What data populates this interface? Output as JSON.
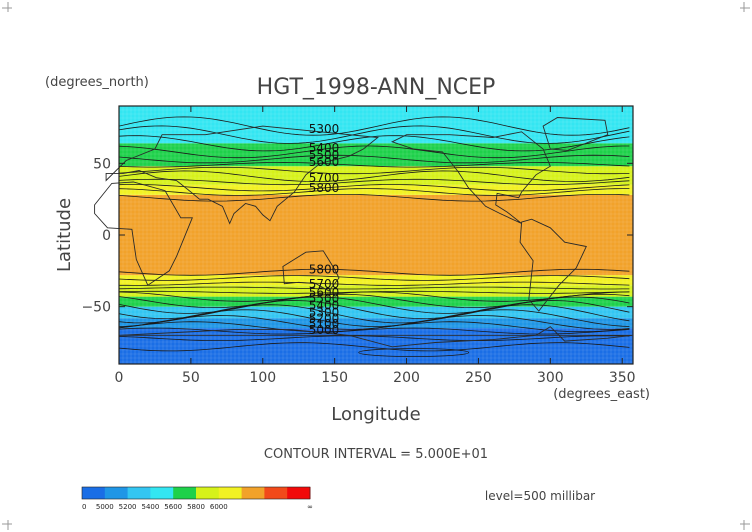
{
  "chart_data": {
    "type": "heatmap",
    "title": "HGT_1998-ANN_NCEP",
    "xlabel": "Longitude",
    "ylabel": "Latitude",
    "x_units": "(degrees_east)",
    "y_units": "(degrees_north)",
    "xlim": [
      0,
      357.5
    ],
    "ylim": [
      -90,
      90
    ],
    "xticks": [
      "0",
      "50",
      "100",
      "150",
      "200",
      "250",
      "300",
      "350"
    ],
    "yticks": [
      "50",
      "0",
      "-50"
    ],
    "contour_interval_text": "CONTOUR INTERVAL = 5.000E+01",
    "level_text": "level=500 millibar",
    "contour_labels": [
      {
        "text": "5300",
        "lon": 132,
        "lat": 71
      },
      {
        "text": "5400",
        "lon": 132,
        "lat": 58
      },
      {
        "text": "5500",
        "lon": 132,
        "lat": 53
      },
      {
        "text": "5600",
        "lon": 132,
        "lat": 48
      },
      {
        "text": "5700",
        "lon": 132,
        "lat": 37
      },
      {
        "text": "5800",
        "lon": 132,
        "lat": 30
      },
      {
        "text": "5800",
        "lon": 132,
        "lat": -27
      },
      {
        "text": "5700",
        "lon": 132,
        "lat": -37
      },
      {
        "text": "5600",
        "lon": 132,
        "lat": -43
      },
      {
        "text": "5500",
        "lon": 132,
        "lat": -47
      },
      {
        "text": "5400",
        "lon": 132,
        "lat": -52
      },
      {
        "text": "5300",
        "lon": 132,
        "lat": -57
      },
      {
        "text": "5200",
        "lon": 132,
        "lat": -61
      },
      {
        "text": "5100",
        "lon": 132,
        "lat": -65
      },
      {
        "text": "5000",
        "lon": 132,
        "lat": -69
      }
    ],
    "color_bands": [
      {
        "range": [
          -90,
          -65
        ],
        "color": "#1a6ee6"
      },
      {
        "range": [
          -65,
          -58
        ],
        "color": "#1f96e6"
      },
      {
        "range": [
          -58,
          -50
        ],
        "color": "#33c6f2"
      },
      {
        "range": [
          -50,
          -43
        ],
        "color": "#1ed14a"
      },
      {
        "range": [
          -43,
          -35
        ],
        "color": "#d6f21a"
      },
      {
        "range": [
          -35,
          -28
        ],
        "color": "#f2f222"
      },
      {
        "range": [
          -28,
          28
        ],
        "color": "#f2a22a"
      },
      {
        "range": [
          28,
          35
        ],
        "color": "#f2f222"
      },
      {
        "range": [
          35,
          48
        ],
        "color": "#d6f21a"
      },
      {
        "range": [
          48,
          64
        ],
        "color": "#1ed14a"
      },
      {
        "range": [
          64,
          90
        ],
        "color": "#33e6f2"
      }
    ],
    "colorbar": {
      "labels": [
        "0",
        "5000",
        "5200",
        "5400",
        "5600",
        "5800",
        "6000",
        "∞"
      ],
      "colors": [
        "#1a6ee6",
        "#1f96e6",
        "#33c6f2",
        "#33e6f2",
        "#1ed14a",
        "#d6f21a",
        "#f2f222",
        "#f2a22a",
        "#f24a1a",
        "#f20a0a"
      ]
    }
  }
}
